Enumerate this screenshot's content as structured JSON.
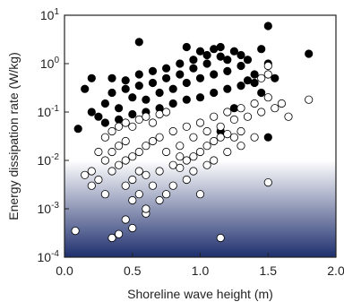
{
  "chart_data": {
    "type": "scatter",
    "xlabel": "Shoreline wave height (m)",
    "ylabel": "Energy dissipation rate (W/kg)",
    "xlim": [
      0,
      2
    ],
    "ylim": [
      0.0001,
      10
    ],
    "yscale": "log",
    "xticks": [
      {
        "v": 0.0,
        "label": "0.0"
      },
      {
        "v": 0.5,
        "label": "0.5"
      },
      {
        "v": 1.0,
        "label": "1.0"
      },
      {
        "v": 1.5,
        "label": "1.5"
      },
      {
        "v": 2.0,
        "label": "2.0"
      }
    ],
    "yticks": [
      {
        "v": 0.0001,
        "base": "10",
        "exp": "-4"
      },
      {
        "v": 0.001,
        "base": "10",
        "exp": "-3"
      },
      {
        "v": 0.01,
        "base": "10",
        "exp": "-2"
      },
      {
        "v": 0.1,
        "base": "10",
        "exp": "-1"
      },
      {
        "v": 1,
        "base": "10",
        "exp": "0"
      },
      {
        "v": 10,
        "base": "10",
        "exp": "1"
      }
    ],
    "background_gradient": {
      "top_color": "#ffffff",
      "bottom_color": "#1f2f6e",
      "fade_start": 0.01
    },
    "grid": false,
    "series": [
      {
        "fill": "#000000",
        "stroke": "#000000",
        "points": [
          [
            0.55,
            2.8
          ],
          [
            1.5,
            6.0
          ],
          [
            1.8,
            1.6
          ],
          [
            1.15,
            0.04
          ],
          [
            0.1,
            0.045
          ],
          [
            1.5,
            0.03
          ],
          [
            0.2,
            0.1
          ],
          [
            0.3,
            0.15
          ],
          [
            0.35,
            0.25
          ],
          [
            0.4,
            0.12
          ],
          [
            0.45,
            0.3
          ],
          [
            0.5,
            0.2
          ],
          [
            0.55,
            0.35
          ],
          [
            0.6,
            0.18
          ],
          [
            0.65,
            0.4
          ],
          [
            0.7,
            0.25
          ],
          [
            0.75,
            0.5
          ],
          [
            0.8,
            0.3
          ],
          [
            0.85,
            0.6
          ],
          [
            0.9,
            0.4
          ],
          [
            0.95,
            0.8
          ],
          [
            1.0,
            0.5
          ],
          [
            1.05,
            1.0
          ],
          [
            1.1,
            0.6
          ],
          [
            1.15,
            1.4
          ],
          [
            1.2,
            0.7
          ],
          [
            1.25,
            1.8
          ],
          [
            1.3,
            0.9
          ],
          [
            1.35,
            1.2
          ],
          [
            1.4,
            0.6
          ],
          [
            1.45,
            2.0
          ],
          [
            1.5,
            1.0
          ],
          [
            1.55,
            0.5
          ],
          [
            0.25,
            0.08
          ],
          [
            0.3,
            0.06
          ],
          [
            0.4,
            0.07
          ],
          [
            0.5,
            0.09
          ],
          [
            0.6,
            0.1
          ],
          [
            0.7,
            0.12
          ],
          [
            0.8,
            0.15
          ],
          [
            0.9,
            0.18
          ],
          [
            1.0,
            0.2
          ],
          [
            1.1,
            0.25
          ],
          [
            1.2,
            0.3
          ],
          [
            1.3,
            0.35
          ],
          [
            1.4,
            0.4
          ],
          [
            0.35,
            0.5
          ],
          [
            0.45,
            0.45
          ],
          [
            0.55,
            0.6
          ],
          [
            0.65,
            0.7
          ],
          [
            0.75,
            0.8
          ],
          [
            0.85,
            1.0
          ],
          [
            0.95,
            1.2
          ],
          [
            1.05,
            1.5
          ],
          [
            1.15,
            2.2
          ],
          [
            1.2,
            1.2
          ],
          [
            1.3,
            1.5
          ],
          [
            1.0,
            1.8
          ],
          [
            0.9,
            2.2
          ],
          [
            1.1,
            2.0
          ],
          [
            0.15,
            0.3
          ],
          [
            0.2,
            0.5
          ],
          [
            1.45,
            0.25
          ],
          [
            1.35,
            0.45
          ],
          [
            1.25,
            0.12
          ]
        ]
      },
      {
        "fill": "#ffffff",
        "stroke": "#000000",
        "points": [
          [
            0.08,
            0.00035
          ],
          [
            0.35,
            0.00025
          ],
          [
            0.45,
            0.0006
          ],
          [
            1.15,
            0.00025
          ],
          [
            0.4,
            0.0003
          ],
          [
            0.5,
            0.0004
          ],
          [
            0.6,
            0.0008
          ],
          [
            0.55,
            0.002
          ],
          [
            0.3,
            0.002
          ],
          [
            0.2,
            0.003
          ],
          [
            0.25,
            0.004
          ],
          [
            0.35,
            0.006
          ],
          [
            0.4,
            0.008
          ],
          [
            0.45,
            0.01
          ],
          [
            0.5,
            0.012
          ],
          [
            0.55,
            0.015
          ],
          [
            0.6,
            0.02
          ],
          [
            0.65,
            0.025
          ],
          [
            0.7,
            0.03
          ],
          [
            0.75,
            0.015
          ],
          [
            0.8,
            0.04
          ],
          [
            0.85,
            0.02
          ],
          [
            0.9,
            0.05
          ],
          [
            0.95,
            0.03
          ],
          [
            1.0,
            0.06
          ],
          [
            1.05,
            0.04
          ],
          [
            1.1,
            0.08
          ],
          [
            1.15,
            0.05
          ],
          [
            1.2,
            0.1
          ],
          [
            1.25,
            0.07
          ],
          [
            1.3,
            0.12
          ],
          [
            1.35,
            0.08
          ],
          [
            1.4,
            0.15
          ],
          [
            1.45,
            0.1
          ],
          [
            1.5,
            0.2
          ],
          [
            1.55,
            0.12
          ],
          [
            1.6,
            0.15
          ],
          [
            1.65,
            0.08
          ],
          [
            1.8,
            0.18
          ],
          [
            1.5,
            0.0035
          ],
          [
            1.5,
            0.9
          ],
          [
            1.5,
            0.6
          ],
          [
            1.45,
            0.5
          ],
          [
            0.3,
            0.03
          ],
          [
            0.35,
            0.04
          ],
          [
            0.4,
            0.05
          ],
          [
            0.45,
            0.06
          ],
          [
            0.5,
            0.05
          ],
          [
            0.55,
            0.07
          ],
          [
            0.6,
            0.08
          ],
          [
            0.65,
            0.06
          ],
          [
            0.7,
            0.09
          ],
          [
            0.75,
            0.1
          ],
          [
            0.8,
            0.008
          ],
          [
            0.85,
            0.007
          ],
          [
            0.9,
            0.01
          ],
          [
            0.95,
            0.012
          ],
          [
            1.0,
            0.015
          ],
          [
            1.05,
            0.02
          ],
          [
            1.1,
            0.025
          ],
          [
            1.15,
            0.03
          ],
          [
            1.2,
            0.035
          ],
          [
            1.25,
            0.03
          ],
          [
            1.3,
            0.04
          ],
          [
            0.3,
            0.01
          ],
          [
            0.35,
            0.015
          ],
          [
            0.4,
            0.02
          ],
          [
            0.45,
            0.025
          ],
          [
            0.5,
            0.004
          ],
          [
            0.6,
            0.005
          ],
          [
            0.7,
            0.006
          ],
          [
            0.8,
            0.003
          ],
          [
            0.9,
            0.004
          ],
          [
            1.0,
            0.002
          ],
          [
            0.65,
            0.003
          ],
          [
            0.55,
            0.006
          ],
          [
            0.25,
            0.015
          ],
          [
            0.2,
            0.006
          ],
          [
            0.15,
            0.005
          ],
          [
            0.45,
            0.003
          ],
          [
            0.75,
            0.002
          ],
          [
            0.85,
            0.012
          ],
          [
            0.95,
            0.006
          ],
          [
            1.05,
            0.008
          ],
          [
            1.1,
            0.01
          ],
          [
            1.2,
            0.015
          ],
          [
            1.3,
            0.02
          ],
          [
            1.4,
            0.03
          ],
          [
            0.7,
            0.0015
          ],
          [
            0.6,
            0.001
          ],
          [
            0.5,
            0.0015
          ]
        ]
      }
    ]
  }
}
